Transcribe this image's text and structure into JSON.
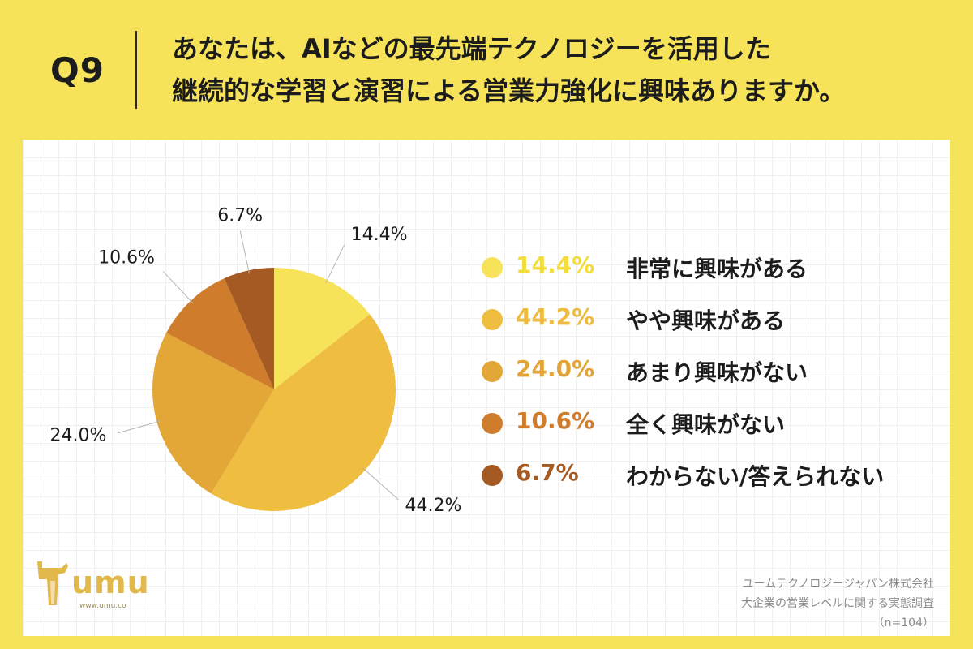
{
  "header": {
    "question_number": "Q9",
    "question_line1": "あなたは、AIなどの最先端テクノロジーを活用した",
    "question_line2": "継続的な学習と演習による営業力強化に興味ありますか。"
  },
  "chart_data": {
    "type": "pie",
    "categories": [
      "非常に興味がある",
      "やや興味がある",
      "あまり興味がない",
      "全く興味がない",
      "わからない/答えられない"
    ],
    "values": [
      14.4,
      44.2,
      24.0,
      10.6,
      6.7
    ],
    "value_labels": [
      "14.4%",
      "44.2%",
      "24.0%",
      "10.6%",
      "6.7%"
    ],
    "colors": [
      "#f6e35a",
      "#efbd3f",
      "#e3a737",
      "#cf7d2c",
      "#a45a22"
    ],
    "title": "",
    "legend_position": "right"
  },
  "legend": {
    "items": [
      {
        "pct": "14.4%",
        "label": "非常に興味がある",
        "color": "#f6e35a"
      },
      {
        "pct": "44.2%",
        "label": "やや興味がある",
        "color": "#efbd3f"
      },
      {
        "pct": "24.0%",
        "label": "あまり興味がない",
        "color": "#e3a737"
      },
      {
        "pct": "10.6%",
        "label": "全く興味がない",
        "color": "#cf7d2c"
      },
      {
        "pct": "6.7%",
        "label": "わからない/答えられない",
        "color": "#a45a22"
      }
    ]
  },
  "logo": {
    "name": "umu",
    "url": "www.umu.co"
  },
  "footer": {
    "company": "ユームテクノロジージャパン株式会社",
    "survey": "大企業の営業レベルに関する実態調査",
    "sample": "（n=104）"
  }
}
